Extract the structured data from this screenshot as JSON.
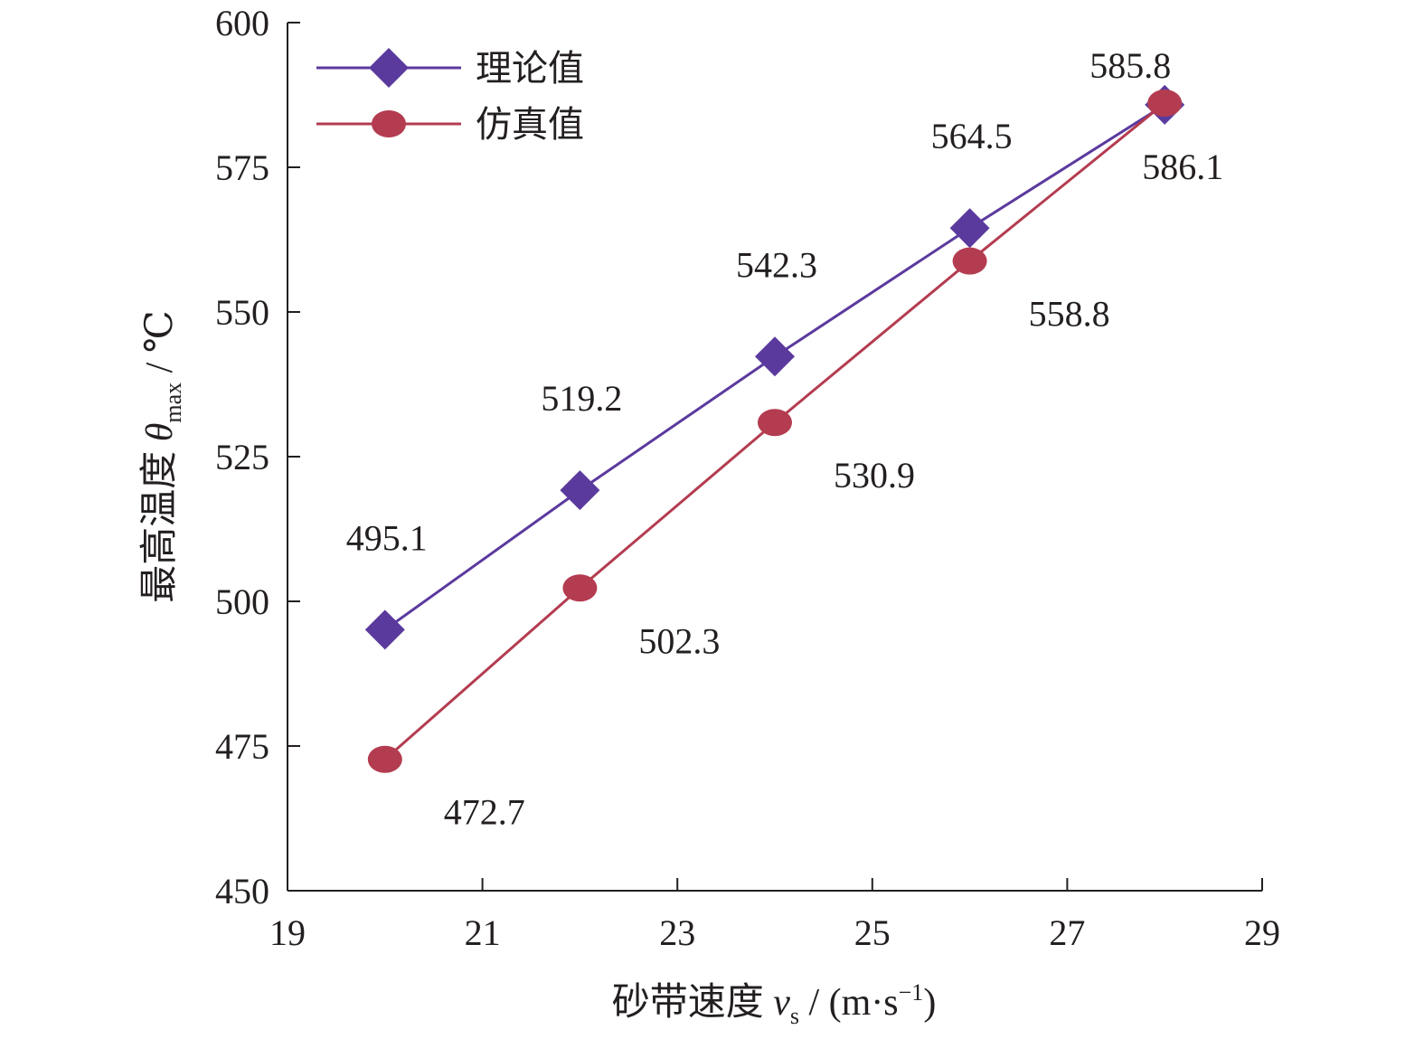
{
  "chart_data": {
    "type": "line",
    "xlabel": {
      "main": "砂带速度 ",
      "var": "v",
      "sub": "s",
      "tail": " / (m·s",
      "sup": "−1",
      "close": ")"
    },
    "ylabel": {
      "main": "最高温度 ",
      "var": "θ",
      "sub": "max",
      "tail": " / ℃"
    },
    "xlim": [
      19,
      29
    ],
    "ylim": [
      450,
      600
    ],
    "x_ticks": [
      19,
      21,
      23,
      25,
      27,
      29
    ],
    "y_ticks": [
      450,
      475,
      500,
      525,
      550,
      575,
      600
    ],
    "x_tick_labels": [
      "19",
      "21",
      "23",
      "25",
      "27",
      "29"
    ],
    "y_tick_labels": [
      "450",
      "475",
      "500",
      "525",
      "550",
      "575",
      "600"
    ],
    "grid": false,
    "legend_position": "top-left",
    "series": [
      {
        "name": "理论值",
        "marker": "diamond",
        "color": "#5b3a9e",
        "x": [
          20,
          22,
          24,
          26,
          28
        ],
        "values": [
          495.1,
          519.2,
          542.3,
          564.5,
          585.8
        ],
        "labels": [
          "495.1",
          "519.2",
          "542.3",
          "564.5",
          "585.8"
        ]
      },
      {
        "name": "仿真值",
        "marker": "circle",
        "color": "#b43c50",
        "x": [
          20,
          22,
          24,
          26,
          28
        ],
        "values": [
          472.7,
          502.3,
          530.9,
          558.8,
          586.1
        ],
        "labels": [
          "472.7",
          "502.3",
          "530.9",
          "558.8",
          "586.1"
        ]
      }
    ]
  }
}
